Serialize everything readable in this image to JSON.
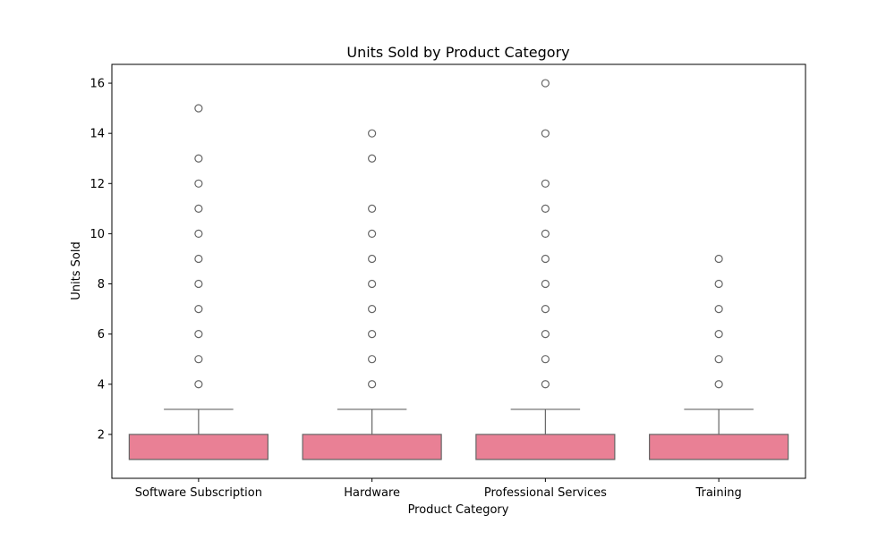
{
  "chart_data": {
    "type": "box",
    "title": "Units Sold by Product Category",
    "xlabel": "Product Category",
    "ylabel": "Units Sold",
    "ylim": [
      0.25,
      16.75
    ],
    "yticks": [
      2,
      4,
      6,
      8,
      10,
      12,
      14,
      16
    ],
    "grid": false,
    "categories": [
      "Software Subscription",
      "Hardware",
      "Professional Services",
      "Training"
    ],
    "boxes": [
      {
        "category": "Software Subscription",
        "whisker_low": 1,
        "q1": 1,
        "median": 1,
        "q3": 2,
        "whisker_high": 3,
        "outliers": [
          4,
          5,
          6,
          7,
          8,
          9,
          10,
          11,
          12,
          13,
          15
        ]
      },
      {
        "category": "Hardware",
        "whisker_low": 1,
        "q1": 1,
        "median": 1,
        "q3": 2,
        "whisker_high": 3,
        "outliers": [
          4,
          5,
          6,
          7,
          8,
          9,
          10,
          11,
          13,
          14
        ]
      },
      {
        "category": "Professional Services",
        "whisker_low": 1,
        "q1": 1,
        "median": 1,
        "q3": 2,
        "whisker_high": 3,
        "outliers": [
          4,
          5,
          6,
          7,
          8,
          9,
          10,
          11,
          12,
          14,
          16
        ]
      },
      {
        "category": "Training",
        "whisker_low": 1,
        "q1": 1,
        "median": 1,
        "q3": 2,
        "whisker_high": 3,
        "outliers": [
          4,
          5,
          6,
          7,
          8,
          9
        ]
      }
    ],
    "colors": {
      "box_fill": "#e98095",
      "line": "#666666",
      "axis": "#000000"
    }
  }
}
